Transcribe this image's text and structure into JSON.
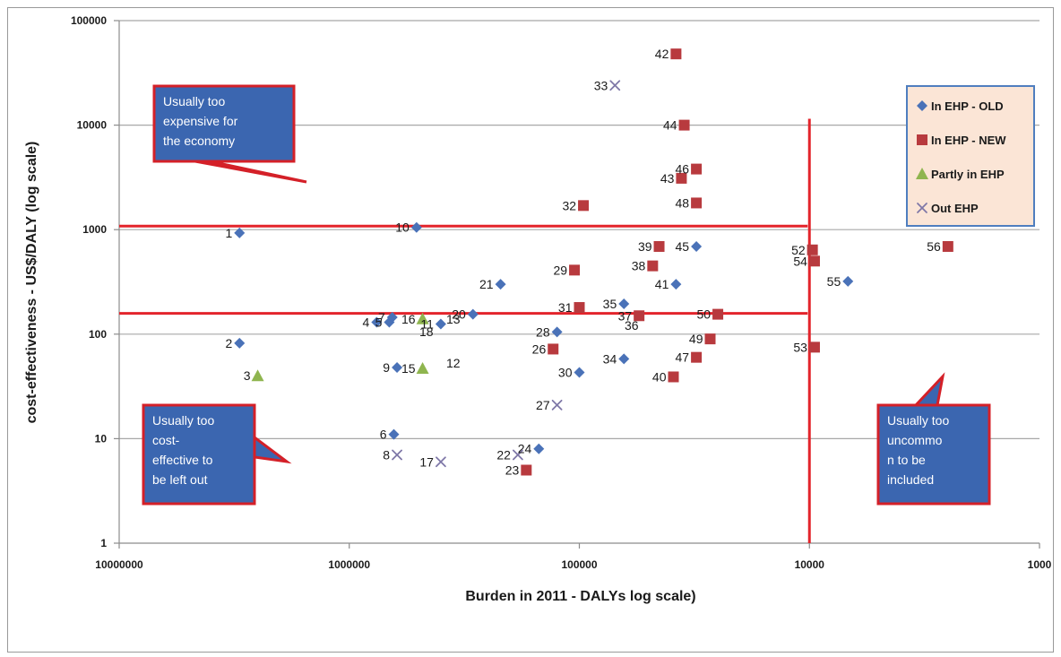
{
  "chart_data": {
    "type": "scatter",
    "title": "",
    "xlabel": "Burden in 2011 - DALYs log scale)",
    "ylabel": "cost-effectiveness - US$/DALY (log scale)",
    "x_scale": "log",
    "y_scale": "log",
    "x_reversed": true,
    "xlim": [
      10000000,
      1000
    ],
    "ylim": [
      1,
      100000
    ],
    "x_ticks": [
      "10000000",
      "1000000",
      "100000",
      "10000",
      "1000"
    ],
    "y_ticks": [
      "1",
      "10",
      "100",
      "1000",
      "10000",
      "100000"
    ],
    "grid": "horizontal",
    "legend_position": "top-right",
    "colors": {
      "In EHP - OLD": "#4a72b8",
      "In EHP - NEW": "#b83a3e",
      "Partly in EHP": "#8fb54f",
      "Out EHP": "#7f78a8",
      "threshold_lines": "#e3242b",
      "callout_fill": "#3b66b0",
      "callout_border": "#d42028",
      "legend_fill": "#fbe5d6",
      "legend_border": "#4f7ebf"
    },
    "series": [
      {
        "name": "In EHP - OLD",
        "marker": "diamond",
        "points": [
          {
            "label": "1",
            "x": 3000000,
            "y": 930
          },
          {
            "label": "10",
            "x": 510000,
            "y": 1050
          },
          {
            "label": "2",
            "x": 3000000,
            "y": 82
          },
          {
            "label": "4",
            "x": 760000,
            "y": 130
          },
          {
            "label": "5",
            "x": 670000,
            "y": 130
          },
          {
            "label": "7",
            "x": 650000,
            "y": 145
          },
          {
            "label": "9",
            "x": 620000,
            "y": 48
          },
          {
            "label": "6",
            "x": 640000,
            "y": 11
          },
          {
            "label": "11",
            "x": 400000,
            "y": 125
          },
          {
            "label": "20",
            "x": 290000,
            "y": 155
          },
          {
            "label": "21",
            "x": 220000,
            "y": 300
          },
          {
            "label": "24",
            "x": 150000,
            "y": 8
          },
          {
            "label": "28",
            "x": 125000,
            "y": 105
          },
          {
            "label": "30",
            "x": 100000,
            "y": 43
          },
          {
            "label": "34",
            "x": 64000,
            "y": 58
          },
          {
            "label": "35",
            "x": 64000,
            "y": 195
          },
          {
            "label": "41",
            "x": 38000,
            "y": 300
          },
          {
            "label": "45",
            "x": 31000,
            "y": 690
          },
          {
            "label": "55",
            "x": 6800,
            "y": 320
          }
        ]
      },
      {
        "name": "In EHP - NEW",
        "marker": "square",
        "points": [
          {
            "label": "42",
            "x": 38000,
            "y": 48000
          },
          {
            "label": "44",
            "x": 35000,
            "y": 10000
          },
          {
            "label": "43",
            "x": 36000,
            "y": 3100
          },
          {
            "label": "46",
            "x": 31000,
            "y": 3800
          },
          {
            "label": "48",
            "x": 31000,
            "y": 1800
          },
          {
            "label": "32",
            "x": 96000,
            "y": 1700
          },
          {
            "label": "39",
            "x": 45000,
            "y": 690
          },
          {
            "label": "38",
            "x": 48000,
            "y": 450
          },
          {
            "label": "29",
            "x": 105000,
            "y": 410
          },
          {
            "label": "31",
            "x": 100000,
            "y": 180
          },
          {
            "label": "37",
            "x": 55000,
            "y": 150
          },
          {
            "label": "50",
            "x": 25000,
            "y": 155
          },
          {
            "label": "49",
            "x": 27000,
            "y": 90
          },
          {
            "label": "47",
            "x": 31000,
            "y": 60
          },
          {
            "label": "40",
            "x": 39000,
            "y": 39
          },
          {
            "label": "26",
            "x": 130000,
            "y": 72
          },
          {
            "label": "23",
            "x": 170000,
            "y": 5
          },
          {
            "label": "52",
            "x": 9700,
            "y": 640
          },
          {
            "label": "54",
            "x": 9500,
            "y": 500
          },
          {
            "label": "53",
            "x": 9500,
            "y": 75
          },
          {
            "label": "56",
            "x": 2500,
            "y": 690
          }
        ]
      },
      {
        "name": "Partly in EHP",
        "marker": "triangle",
        "points": [
          {
            "label": "3",
            "x": 2500000,
            "y": 40
          },
          {
            "label": "16",
            "x": 480000,
            "y": 140
          },
          {
            "label": "15",
            "x": 480000,
            "y": 47
          }
        ]
      },
      {
        "name": "Out EHP",
        "marker": "x",
        "points": [
          {
            "label": "33",
            "x": 70000,
            "y": 24000
          },
          {
            "label": "8",
            "x": 620000,
            "y": 7
          },
          {
            "label": "17",
            "x": 400000,
            "y": 6
          },
          {
            "label": "22",
            "x": 185000,
            "y": 7
          },
          {
            "label": "27",
            "x": 125000,
            "y": 21
          }
        ]
      }
    ],
    "extra_labels": [
      "18",
      "13",
      "12",
      "36"
    ],
    "threshold_lines": [
      {
        "orientation": "horizontal",
        "y": 1080
      },
      {
        "orientation": "horizontal",
        "y": 158
      },
      {
        "orientation": "vertical",
        "x": 10000
      }
    ],
    "annotations": [
      {
        "id": "expensive",
        "lines": [
          "Usually too",
          "expensive for",
          "the economy"
        ]
      },
      {
        "id": "cost-effective",
        "lines": [
          "Usually too",
          "cost-",
          "effective to",
          "be left out"
        ]
      },
      {
        "id": "uncommon",
        "lines": [
          "Usually too",
          "uncommo",
          "n to be",
          "included"
        ]
      }
    ]
  }
}
